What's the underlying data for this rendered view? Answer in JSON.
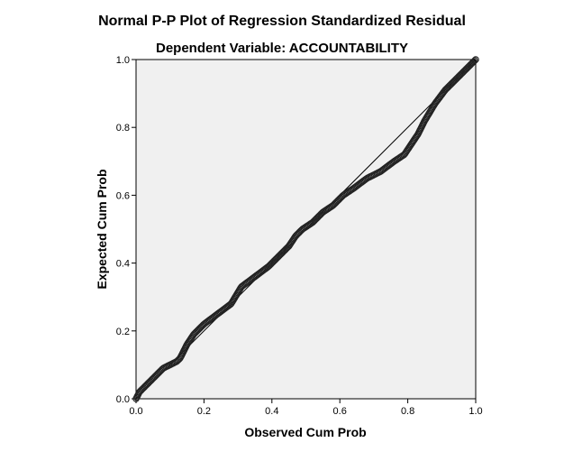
{
  "chart_data": {
    "type": "scatter",
    "title": "Normal P-P Plot of Regression Standardized Residual",
    "subtitle": "Dependent Variable: ACCOUNTABILITY",
    "xlabel": "Observed Cum Prob",
    "ylabel": "Expected Cum Prob",
    "xlim": [
      0,
      1
    ],
    "ylim": [
      0,
      1
    ],
    "x_ticks": [
      "0.0",
      "0.2",
      "0.4",
      "0.6",
      "0.8",
      "1.0"
    ],
    "y_ticks": [
      "0.0",
      "0.2",
      "0.4",
      "0.6",
      "0.8",
      "1.0"
    ],
    "reference_line": [
      [
        0,
        0
      ],
      [
        1,
        1
      ]
    ],
    "curve_points": [
      [
        0.0,
        0.0
      ],
      [
        0.01,
        0.02
      ],
      [
        0.02,
        0.03
      ],
      [
        0.04,
        0.05
      ],
      [
        0.06,
        0.07
      ],
      [
        0.08,
        0.09
      ],
      [
        0.1,
        0.1
      ],
      [
        0.12,
        0.11
      ],
      [
        0.13,
        0.12
      ],
      [
        0.15,
        0.16
      ],
      [
        0.17,
        0.19
      ],
      [
        0.2,
        0.22
      ],
      [
        0.24,
        0.25
      ],
      [
        0.28,
        0.28
      ],
      [
        0.31,
        0.33
      ],
      [
        0.35,
        0.36
      ],
      [
        0.39,
        0.39
      ],
      [
        0.42,
        0.42
      ],
      [
        0.45,
        0.45
      ],
      [
        0.47,
        0.48
      ],
      [
        0.49,
        0.5
      ],
      [
        0.52,
        0.52
      ],
      [
        0.55,
        0.55
      ],
      [
        0.58,
        0.57
      ],
      [
        0.61,
        0.6
      ],
      [
        0.64,
        0.62
      ],
      [
        0.68,
        0.65
      ],
      [
        0.72,
        0.67
      ],
      [
        0.76,
        0.7
      ],
      [
        0.79,
        0.72
      ],
      [
        0.81,
        0.75
      ],
      [
        0.83,
        0.78
      ],
      [
        0.85,
        0.82
      ],
      [
        0.88,
        0.87
      ],
      [
        0.91,
        0.91
      ],
      [
        0.94,
        0.94
      ],
      [
        0.97,
        0.97
      ],
      [
        1.0,
        1.0
      ]
    ],
    "n_points": 330,
    "plot_background": "#f0f0f0",
    "marker_color": "#222222",
    "grid": false,
    "legend": "none"
  }
}
